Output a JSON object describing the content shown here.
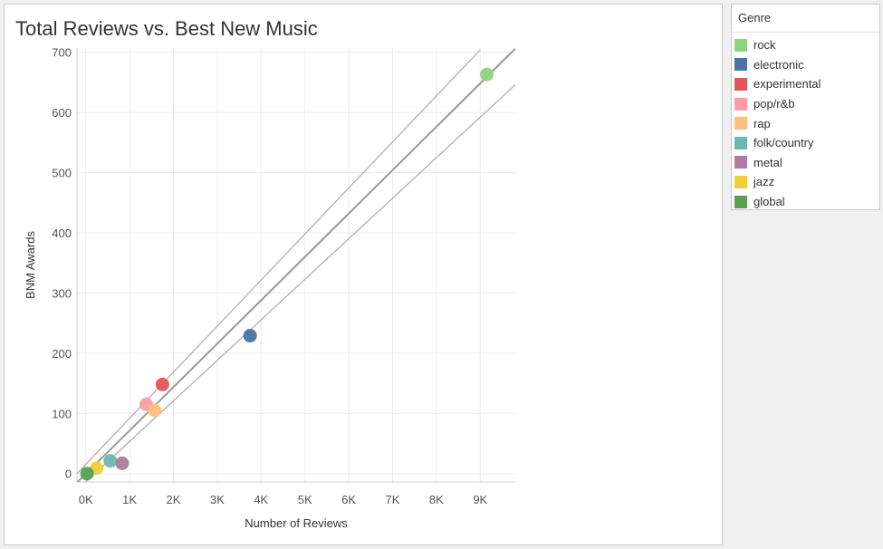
{
  "chart_data": {
    "type": "scatter",
    "title": "Total Reviews vs. Best New Music",
    "xlabel": "Number of Reviews",
    "ylabel": "BNM Awards",
    "xlim": [
      -200,
      9800
    ],
    "ylim": [
      -14,
      707
    ],
    "x_ticks": [
      0,
      1000,
      2000,
      3000,
      4000,
      5000,
      6000,
      7000,
      8000,
      9000
    ],
    "x_tick_labels": [
      "0K",
      "1K",
      "2K",
      "3K",
      "4K",
      "5K",
      "6K",
      "7K",
      "8K",
      "9K"
    ],
    "y_ticks": [
      0,
      100,
      200,
      300,
      400,
      500,
      600,
      700
    ],
    "y_tick_labels": [
      "0",
      "100",
      "200",
      "300",
      "400",
      "500",
      "600",
      "700"
    ],
    "grid": true,
    "legend_title": "Genre",
    "legend_position": "right",
    "points": [
      {
        "genre": "rock",
        "x": 9150,
        "y": 663,
        "color": "#8fd37f"
      },
      {
        "genre": "electronic",
        "x": 3750,
        "y": 229,
        "color": "#4a72a6"
      },
      {
        "genre": "experimental",
        "x": 1750,
        "y": 148,
        "color": "#e15759"
      },
      {
        "genre": "pop/r&b",
        "x": 1380,
        "y": 115,
        "color": "#ff9da7"
      },
      {
        "genre": "rap",
        "x": 1570,
        "y": 105,
        "color": "#ffbe7d"
      },
      {
        "genre": "folk/country",
        "x": 560,
        "y": 21,
        "color": "#6cb7b1"
      },
      {
        "genre": "metal",
        "x": 830,
        "y": 17,
        "color": "#b07aa1"
      },
      {
        "genre": "jazz",
        "x": 250,
        "y": 9,
        "color": "#f1ce3e"
      },
      {
        "genre": "global",
        "x": 30,
        "y": 0,
        "color": "#59a14f"
      }
    ],
    "trend_lines": [
      {
        "kind": "fit",
        "start": [
          -200,
          -15
        ],
        "end": [
          9800,
          706
        ],
        "color": "#999999"
      },
      {
        "kind": "upper",
        "start": [
          -200,
          0
        ],
        "end": [
          9000,
          704
        ],
        "color": "#aaaaaa"
      },
      {
        "kind": "lower",
        "start": [
          0,
          -14
        ],
        "end": [
          9800,
          646
        ],
        "color": "#aaaaaa"
      }
    ]
  }
}
